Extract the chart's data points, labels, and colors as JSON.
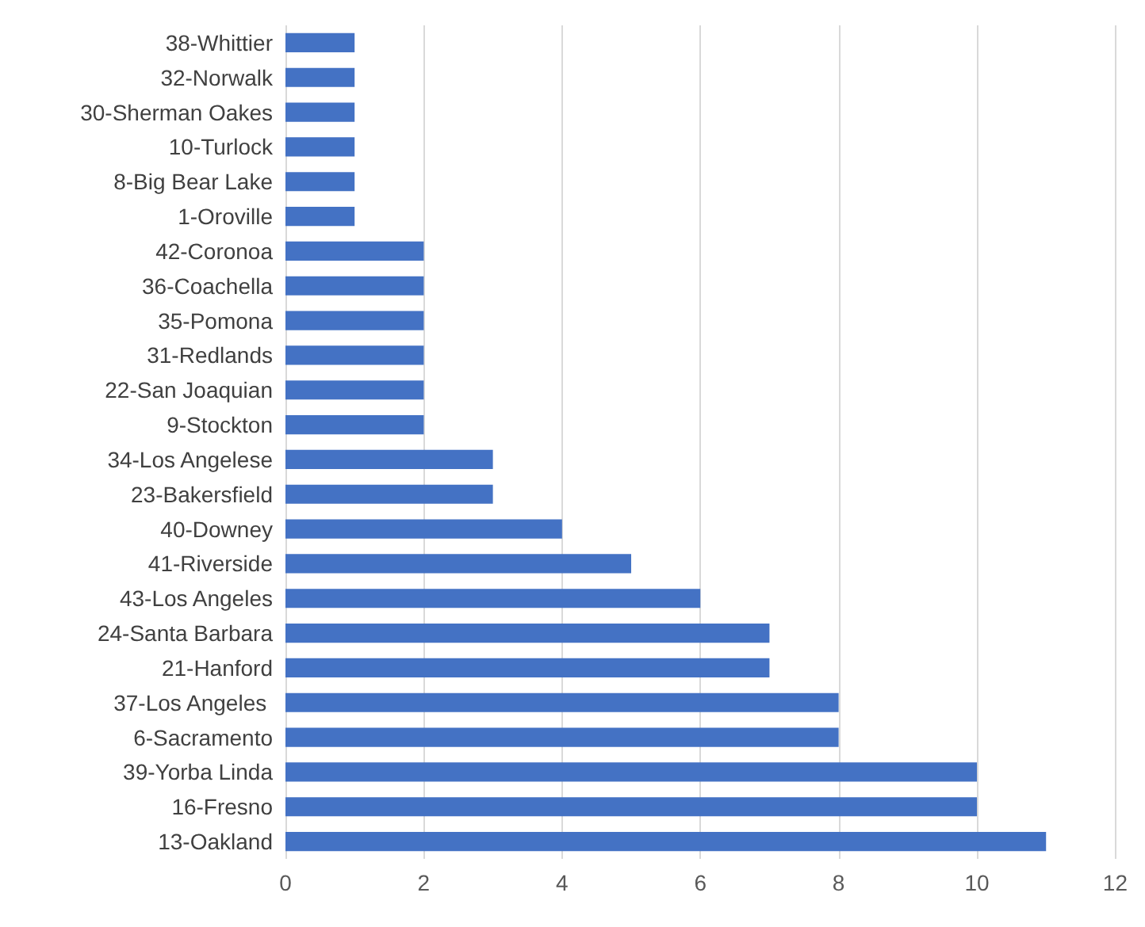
{
  "chart_data": {
    "type": "bar",
    "orientation": "horizontal",
    "categories": [
      "38-Whittier",
      "32-Norwalk",
      "30-Sherman Oakes",
      "10-Turlock",
      "8-Big Bear Lake",
      "1-Oroville",
      "42-Coronoa",
      "36-Coachella",
      "35-Pomona",
      "31-Redlands",
      "22-San Joaquian",
      "9-Stockton",
      "34-Los Angelese",
      "23-Bakersfield",
      "40-Downey",
      "41-Riverside",
      "43-Los Angeles",
      "24-Santa Barbara",
      "21-Hanford",
      "37-Los Angeles ",
      "6-Sacramento",
      "39-Yorba Linda",
      "16-Fresno",
      "13-Oakland"
    ],
    "values": [
      1,
      1,
      1,
      1,
      1,
      1,
      2,
      2,
      2,
      2,
      2,
      2,
      3,
      3,
      4,
      5,
      6,
      7,
      7,
      8,
      8,
      10,
      10,
      11
    ],
    "color": "#4472c4",
    "xlim": [
      0,
      12
    ],
    "xticks": [
      0,
      2,
      4,
      6,
      8,
      10,
      12
    ],
    "grid": "x"
  }
}
